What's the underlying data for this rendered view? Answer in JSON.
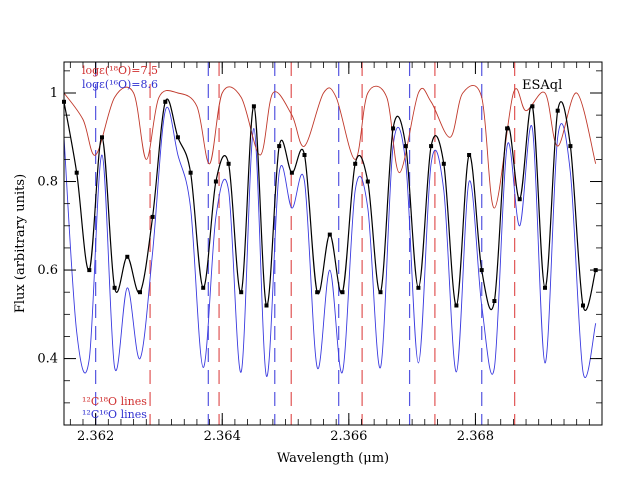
{
  "chart_data": {
    "type": "line",
    "xlabel": "Wavelength (μm)",
    "ylabel": "Flux (arbitrary units)",
    "xlim": [
      2.3615,
      2.37
    ],
    "ylim": [
      0.25,
      1.07
    ],
    "x_ticks": [
      2.362,
      2.364,
      2.366,
      2.368
    ],
    "x_tick_labels": [
      "2.362",
      "2.364",
      "2.366",
      "2.368"
    ],
    "y_ticks": [
      0.4,
      0.6,
      0.8,
      1.0
    ],
    "y_tick_labels": [
      "0.4",
      "0.6",
      "0.8",
      "1"
    ],
    "star_label": "ESAql",
    "annotations": {
      "model_red": "logε(¹⁸O)=7.5",
      "model_blue": "logε(¹⁶O)=8.6",
      "line_key_red": "¹²C¹⁸O lines",
      "line_key_blue": "¹²C¹⁶O lines"
    },
    "colors": {
      "observed": "#000000",
      "model_18O": "#c0392b",
      "model_16O": "#3a3adf",
      "c18o_marker": "#e05555",
      "c16o_marker": "#5555e0"
    },
    "c18o_line_wavelengths": [
      2.36286,
      2.36395,
      2.36509,
      2.36621,
      2.36736,
      2.36862
    ],
    "c16o_line_wavelengths": [
      2.362,
      2.36378,
      2.36483,
      2.36584,
      2.36696,
      2.3681
    ],
    "series": [
      {
        "kind": "observed",
        "x": [
          2.3615,
          2.3617,
          2.3619,
          2.3621,
          2.3623,
          2.3625,
          2.3627,
          2.3629,
          2.3631,
          2.3633,
          2.3635,
          2.3637,
          2.3639,
          2.3641,
          2.3643,
          2.3645,
          2.3647,
          2.3649,
          2.3651,
          2.3653,
          2.3655,
          2.3657,
          2.3659,
          2.3661,
          2.3663,
          2.3665,
          2.3667,
          2.3669,
          2.3671,
          2.3673,
          2.3675,
          2.3677,
          2.3679,
          2.3681,
          2.3683,
          2.3685,
          2.3687,
          2.3689,
          2.3691,
          2.3693,
          2.3695,
          2.3697,
          2.3699
        ],
        "y": [
          0.98,
          0.82,
          0.6,
          0.9,
          0.56,
          0.63,
          0.55,
          0.72,
          0.98,
          0.9,
          0.82,
          0.56,
          0.8,
          0.84,
          0.55,
          0.97,
          0.52,
          0.88,
          0.82,
          0.86,
          0.55,
          0.68,
          0.55,
          0.84,
          0.8,
          0.55,
          0.92,
          0.88,
          0.56,
          0.88,
          0.84,
          0.52,
          0.86,
          0.6,
          0.53,
          0.92,
          0.76,
          0.97,
          0.56,
          0.96,
          0.88,
          0.52,
          0.6
        ]
      },
      {
        "kind": "model_18O",
        "x": [
          2.3615,
          2.3618,
          2.362,
          2.3623,
          2.3626,
          2.3628,
          2.363,
          2.3633,
          2.3636,
          2.3638,
          2.364,
          2.3643,
          2.3646,
          2.3648,
          2.3651,
          2.3653,
          2.3656,
          2.3658,
          2.3661,
          2.3663,
          2.3666,
          2.3668,
          2.3671,
          2.3673,
          2.3676,
          2.3678,
          2.3681,
          2.3683,
          2.3686,
          2.3688,
          2.3691,
          2.3693,
          2.3696,
          2.3699
        ],
        "y": [
          1.0,
          0.94,
          0.86,
          0.99,
          1.0,
          0.85,
          0.99,
          1.0,
          0.97,
          0.84,
          1.0,
          0.99,
          0.86,
          1.0,
          0.95,
          0.88,
          1.0,
          0.99,
          0.85,
          1.0,
          0.99,
          0.82,
          1.0,
          0.98,
          0.9,
          1.0,
          0.99,
          0.74,
          1.0,
          0.96,
          1.0,
          0.88,
          1.0,
          0.84
        ]
      },
      {
        "kind": "model_16O",
        "x": [
          2.3615,
          2.3617,
          2.3619,
          2.3621,
          2.3623,
          2.3625,
          2.3627,
          2.3629,
          2.3631,
          2.3633,
          2.3635,
          2.3637,
          2.3639,
          2.3641,
          2.3643,
          2.3645,
          2.3647,
          2.3649,
          2.3651,
          2.3653,
          2.3655,
          2.3657,
          2.3659,
          2.3661,
          2.3663,
          2.3665,
          2.3667,
          2.3669,
          2.3671,
          2.3673,
          2.3675,
          2.3677,
          2.3679,
          2.3681,
          2.3683,
          2.3685,
          2.3687,
          2.3689,
          2.3691,
          2.3693,
          2.3695,
          2.3697,
          2.3699
        ],
        "y": [
          0.9,
          0.46,
          0.4,
          0.86,
          0.38,
          0.56,
          0.4,
          0.64,
          0.96,
          0.86,
          0.74,
          0.38,
          0.72,
          0.78,
          0.37,
          0.92,
          0.36,
          0.82,
          0.74,
          0.8,
          0.38,
          0.6,
          0.37,
          0.78,
          0.74,
          0.38,
          0.88,
          0.84,
          0.39,
          0.84,
          0.78,
          0.37,
          0.8,
          0.52,
          0.38,
          0.88,
          0.7,
          0.92,
          0.39,
          0.9,
          0.82,
          0.37,
          0.48
        ]
      }
    ]
  }
}
